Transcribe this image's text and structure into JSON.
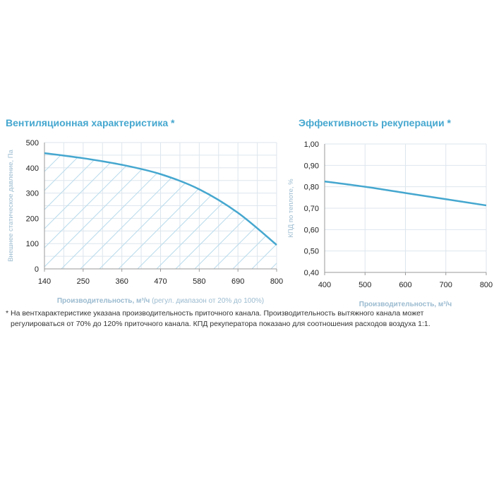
{
  "footnote": {
    "line1": "* На вентхарактеристике указана производительность приточного канала. Производительность вытяжного канала может",
    "line2": "регулироваться от 70% до 120% приточного канала. КПД рекуператора показано для соотношения расходов воздуха 1:1."
  },
  "colors": {
    "accent": "#45a7cf",
    "grid": "#dde6ee",
    "axis_label": "#9bbbd0"
  },
  "chart_data": [
    {
      "type": "area",
      "title": "Вентиляционная характеристика *",
      "xlabel_main": "Производительность, м³/ч",
      "xlabel_note": "(регул. диапазон от 20% до 100%)",
      "ylabel": "Внешнее статическое давление, Па",
      "xlim": [
        140,
        800
      ],
      "ylim": [
        0,
        500
      ],
      "xticks": [
        "140",
        "250",
        "360",
        "470",
        "580",
        "690",
        "800"
      ],
      "yticks": [
        "0",
        "100",
        "200",
        "300",
        "400",
        "500"
      ],
      "grid": true,
      "hatched_fill": true,
      "x": [
        140,
        250,
        360,
        470,
        580,
        690,
        800
      ],
      "y": [
        458,
        438,
        412,
        375,
        315,
        222,
        95
      ]
    },
    {
      "type": "line",
      "title": "Эффективность рекуперации *",
      "xlabel": "Производительность, м³/ч",
      "ylabel": "КПД по теплоте, %",
      "xlim": [
        400,
        800
      ],
      "ylim": [
        0.4,
        1.0
      ],
      "xticks": [
        "400",
        "500",
        "600",
        "700",
        "800"
      ],
      "yticks": [
        "0,40",
        "0,50",
        "0,60",
        "0,70",
        "0,80",
        "0,90",
        "1,00"
      ],
      "grid": true,
      "x": [
        400,
        500,
        600,
        700,
        800
      ],
      "y": [
        0.825,
        0.8,
        0.771,
        0.742,
        0.713
      ]
    }
  ]
}
